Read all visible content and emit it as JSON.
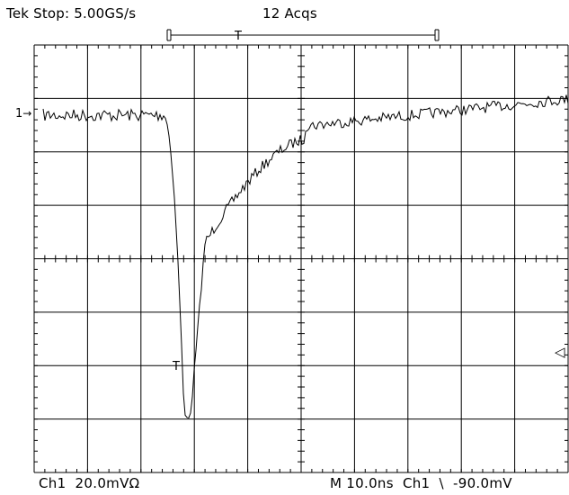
{
  "header": {
    "status": "Tek Stop: 5.00GS/s",
    "acquisitions": "12 Acqs"
  },
  "trigger_position_marker": "T",
  "trigger_point_marker": "T",
  "channel_marker": {
    "label": "1",
    "arrow": "→"
  },
  "trigger_level_marker": "◁",
  "footer": {
    "channel_readout": "Ch1  20.0mVΩ",
    "timebase_readout": "M 10.0ns  Ch1  \\  -90.0mV"
  },
  "display": {
    "background": "#ffffff",
    "trace_color": "#000000",
    "grid_color": "#000000",
    "grid": {
      "horizontal_divisions": 10,
      "vertical_divisions": 8
    }
  }
}
